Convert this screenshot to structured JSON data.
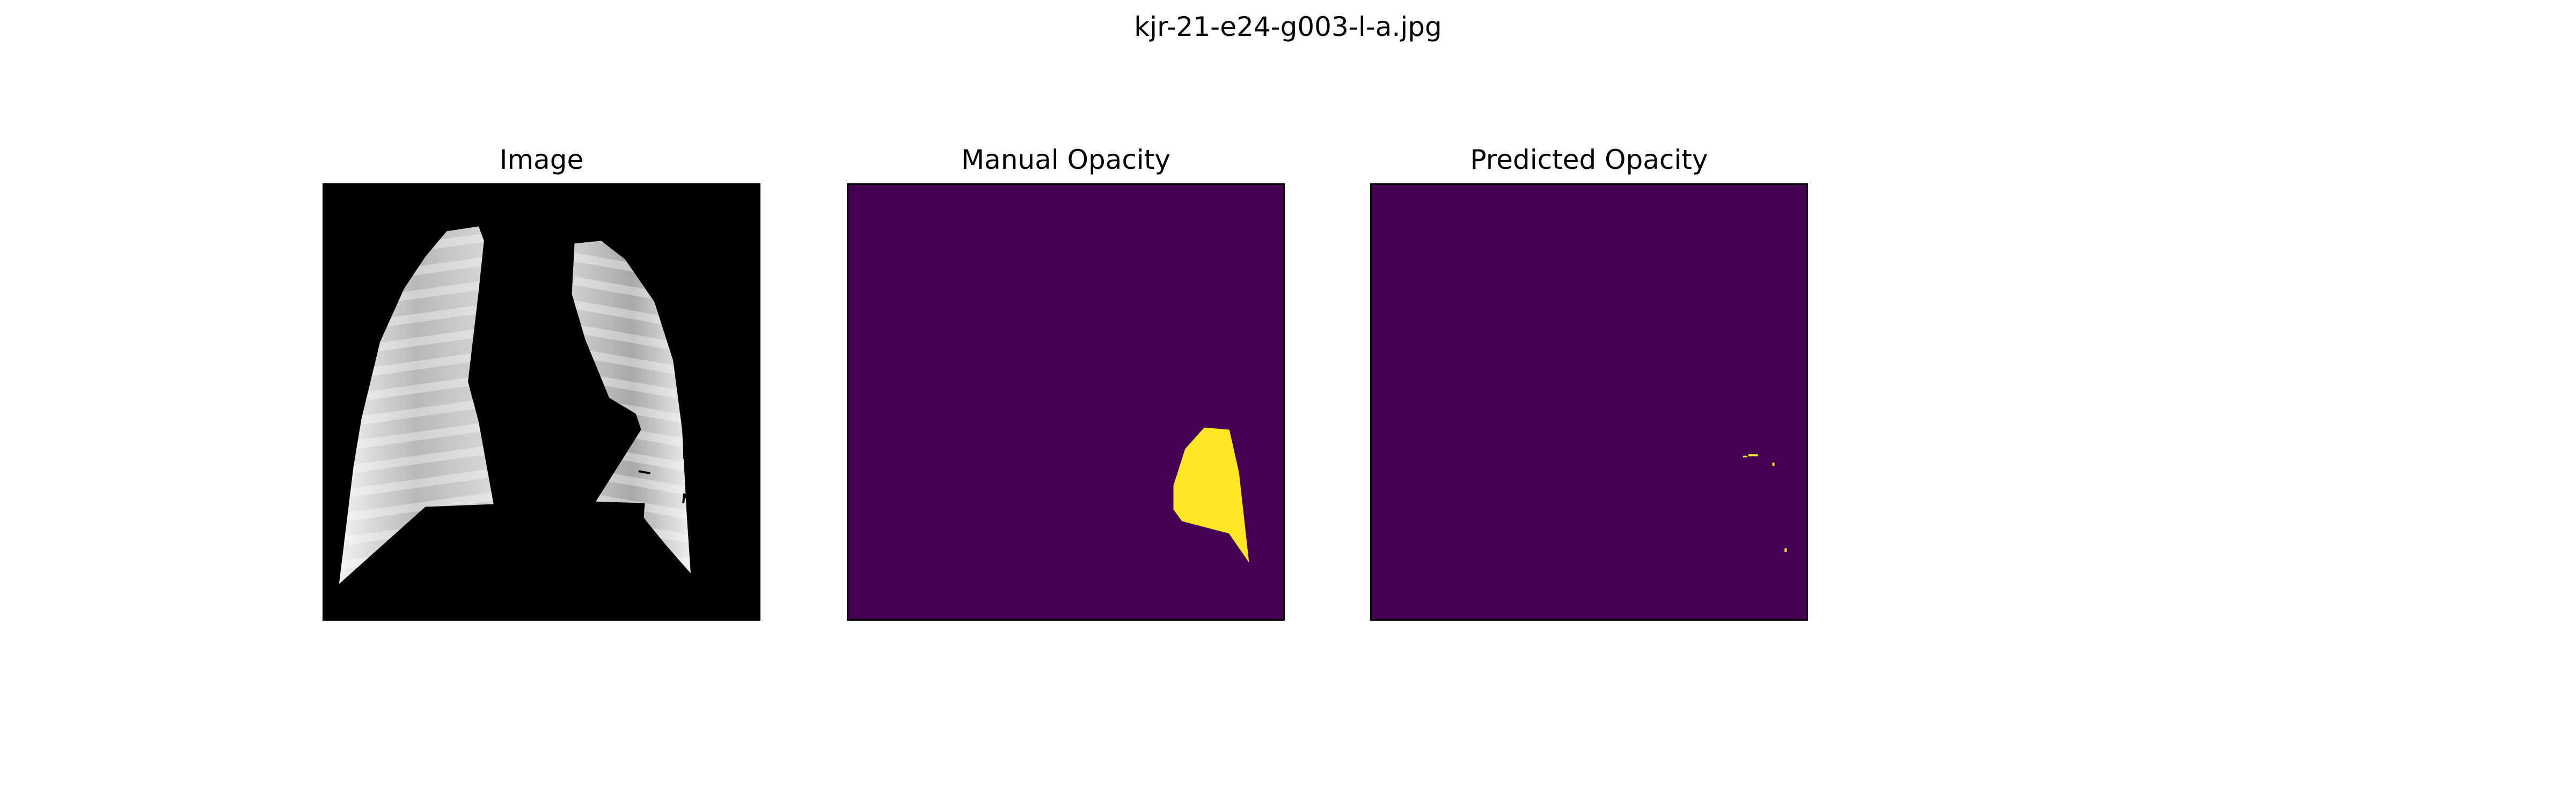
{
  "figure": {
    "suptitle": "kjr-21-e24-g003-l-a.jpg"
  },
  "panels": [
    {
      "title": "Image",
      "content": "chest-xray-lung-segmentation"
    },
    {
      "title": "Manual Opacity",
      "content": "manual-opacity-mask"
    },
    {
      "title": "Predicted Opacity",
      "content": "predicted-opacity-mask"
    }
  ],
  "colors": {
    "background": "#000000",
    "mask_background": "#440154",
    "mask_foreground": "#fde725",
    "lung_light": "#e6e6e6",
    "lung_dark": "#9a9a9a"
  }
}
